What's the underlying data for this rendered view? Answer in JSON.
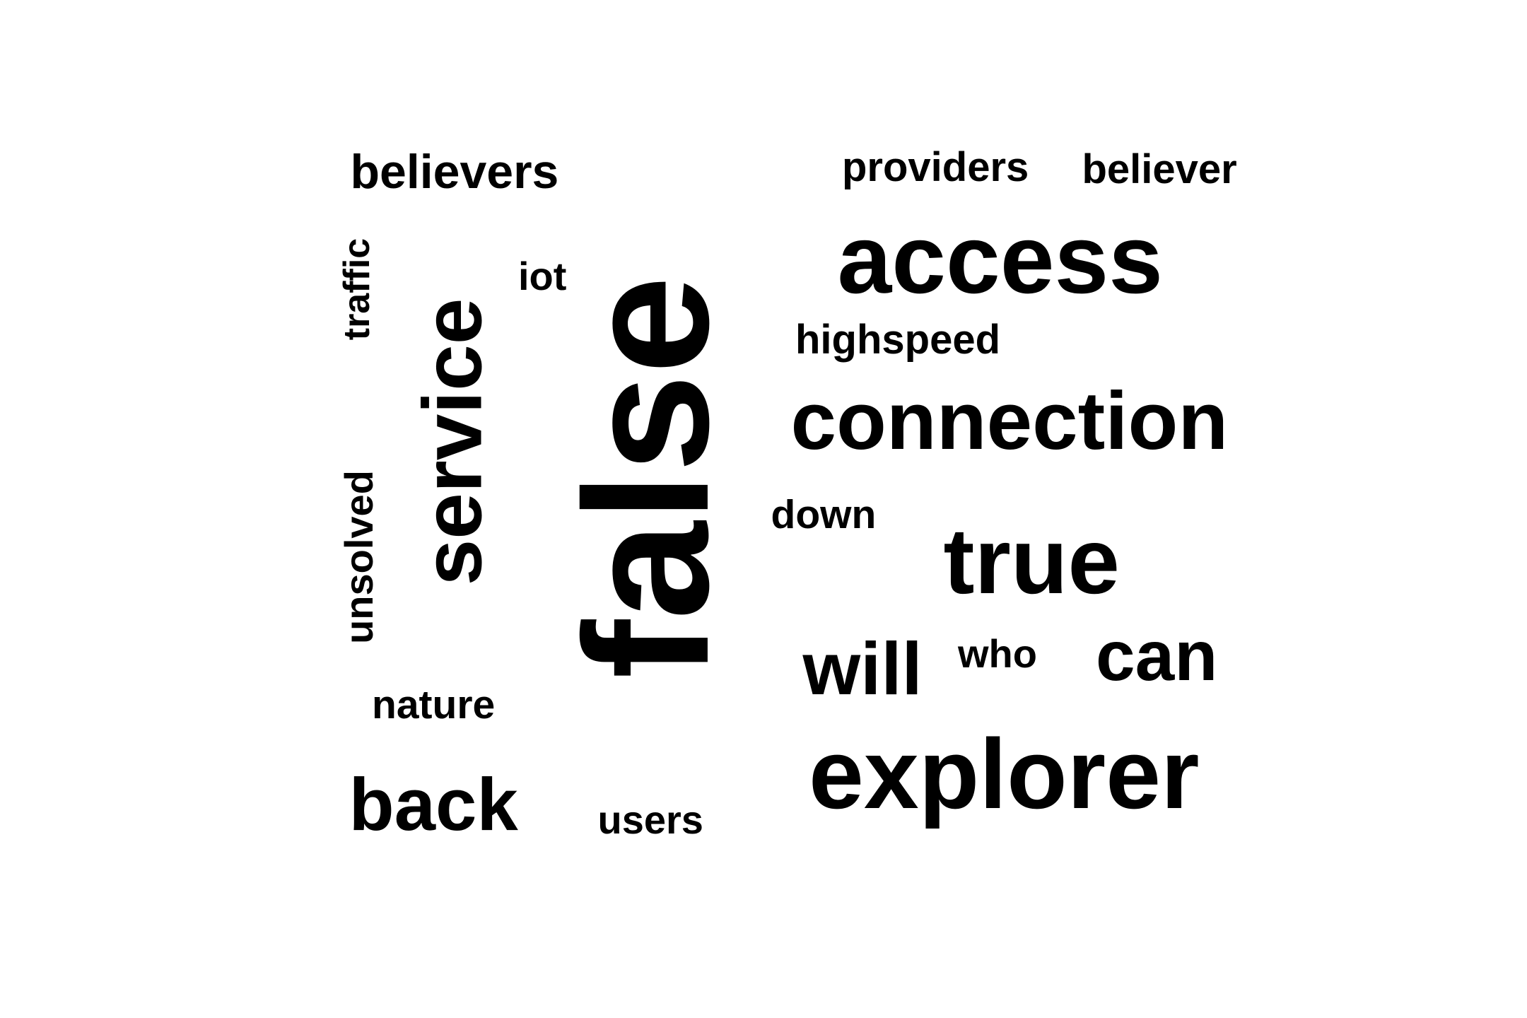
{
  "word_cloud": {
    "text_color": "#000000",
    "background_color": "#ffffff",
    "words": [
      {
        "id": "false",
        "text": "false",
        "orientation": "vertical"
      },
      {
        "id": "service",
        "text": "service",
        "orientation": "vertical"
      },
      {
        "id": "access",
        "text": "access",
        "orientation": "horizontal"
      },
      {
        "id": "explorer",
        "text": "explorer",
        "orientation": "horizontal"
      },
      {
        "id": "connection",
        "text": "connection",
        "orientation": "horizontal"
      },
      {
        "id": "true",
        "text": "true",
        "orientation": "horizontal"
      },
      {
        "id": "back",
        "text": "back",
        "orientation": "horizontal"
      },
      {
        "id": "can",
        "text": "can",
        "orientation": "horizontal"
      },
      {
        "id": "will",
        "text": "will",
        "orientation": "horizontal"
      },
      {
        "id": "believers",
        "text": "believers",
        "orientation": "horizontal"
      },
      {
        "id": "highspeed",
        "text": "highspeed",
        "orientation": "horizontal"
      },
      {
        "id": "providers",
        "text": "providers",
        "orientation": "horizontal"
      },
      {
        "id": "believer",
        "text": "believer",
        "orientation": "horizontal"
      },
      {
        "id": "down",
        "text": "down",
        "orientation": "horizontal"
      },
      {
        "id": "nature",
        "text": "nature",
        "orientation": "horizontal"
      },
      {
        "id": "users",
        "text": "users",
        "orientation": "horizontal"
      },
      {
        "id": "who",
        "text": "who",
        "orientation": "horizontal"
      },
      {
        "id": "iot",
        "text": "iot",
        "orientation": "horizontal"
      },
      {
        "id": "traffic",
        "text": "traffic",
        "orientation": "vertical"
      },
      {
        "id": "unsolved",
        "text": "unsolved",
        "orientation": "vertical"
      }
    ]
  }
}
